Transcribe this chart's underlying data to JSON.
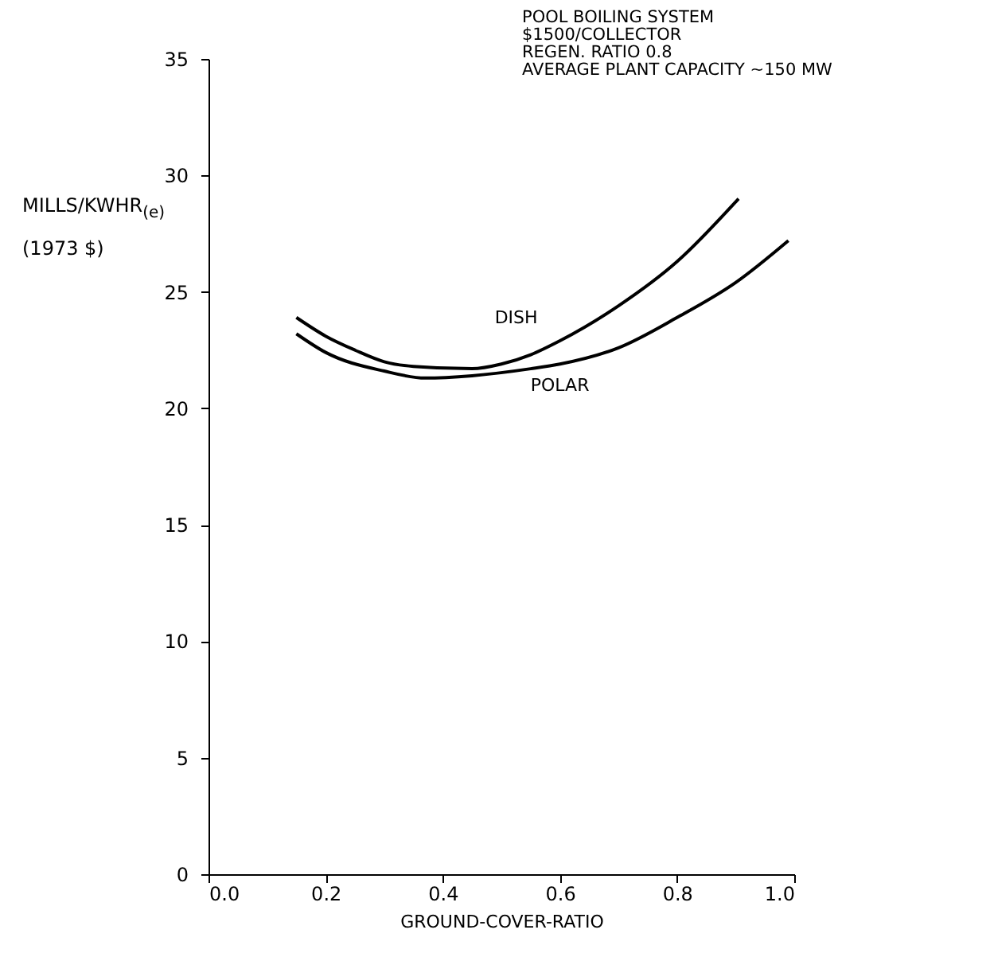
{
  "chart_data": {
    "type": "line",
    "title": "POOL BOILING SYSTEM",
    "subtitle": "$1500/COLLECTOR",
    "annotations": [
      "REGEN. RATIO 0.8",
      "AVERAGE PLANT CAPACITY ~150 MW"
    ],
    "xlabel": "GROUND-COVER-RATIO",
    "ylabel": "MILLS/KWHR$_{(e)}$ (1973 $)",
    "xlim": [
      0,
      1
    ],
    "ylim": [
      0,
      35
    ],
    "xticks": [
      {
        "value": 0,
        "label": "0.0"
      },
      {
        "value": 0.2,
        "label": "0.2"
      },
      {
        "value": 0.4,
        "label": "0.4"
      },
      {
        "value": 0.6,
        "label": "0.6"
      },
      {
        "value": 0.8,
        "label": "0.8"
      },
      {
        "value": 1,
        "label": "1.0"
      }
    ],
    "yticks": [
      0,
      5,
      10,
      15,
      20,
      25,
      30,
      35
    ],
    "grid": false,
    "marker": "none",
    "line_style": "solid",
    "series": [
      {
        "name": "DISH",
        "color": "#000000",
        "x": [
          0.15,
          0.2,
          0.25,
          0.3,
          0.35,
          0.45,
          0.5,
          0.55,
          0.6,
          0.7,
          0.8,
          0.905
        ],
        "values": [
          23.9,
          23.1,
          22.5,
          22.0,
          21.8,
          21.7,
          21.9,
          22.3,
          22.9,
          24.4,
          26.3,
          29.0
        ]
      },
      {
        "name": "POLAR",
        "color": "#000000",
        "x": [
          0.15,
          0.2,
          0.3,
          0.37,
          0.45,
          0.55,
          0.6,
          0.7,
          0.8,
          0.9,
          0.99
        ],
        "values": [
          23.2,
          22.4,
          21.6,
          21.3,
          21.4,
          21.7,
          21.9,
          22.6,
          23.9,
          25.4,
          27.2
        ]
      }
    ]
  }
}
